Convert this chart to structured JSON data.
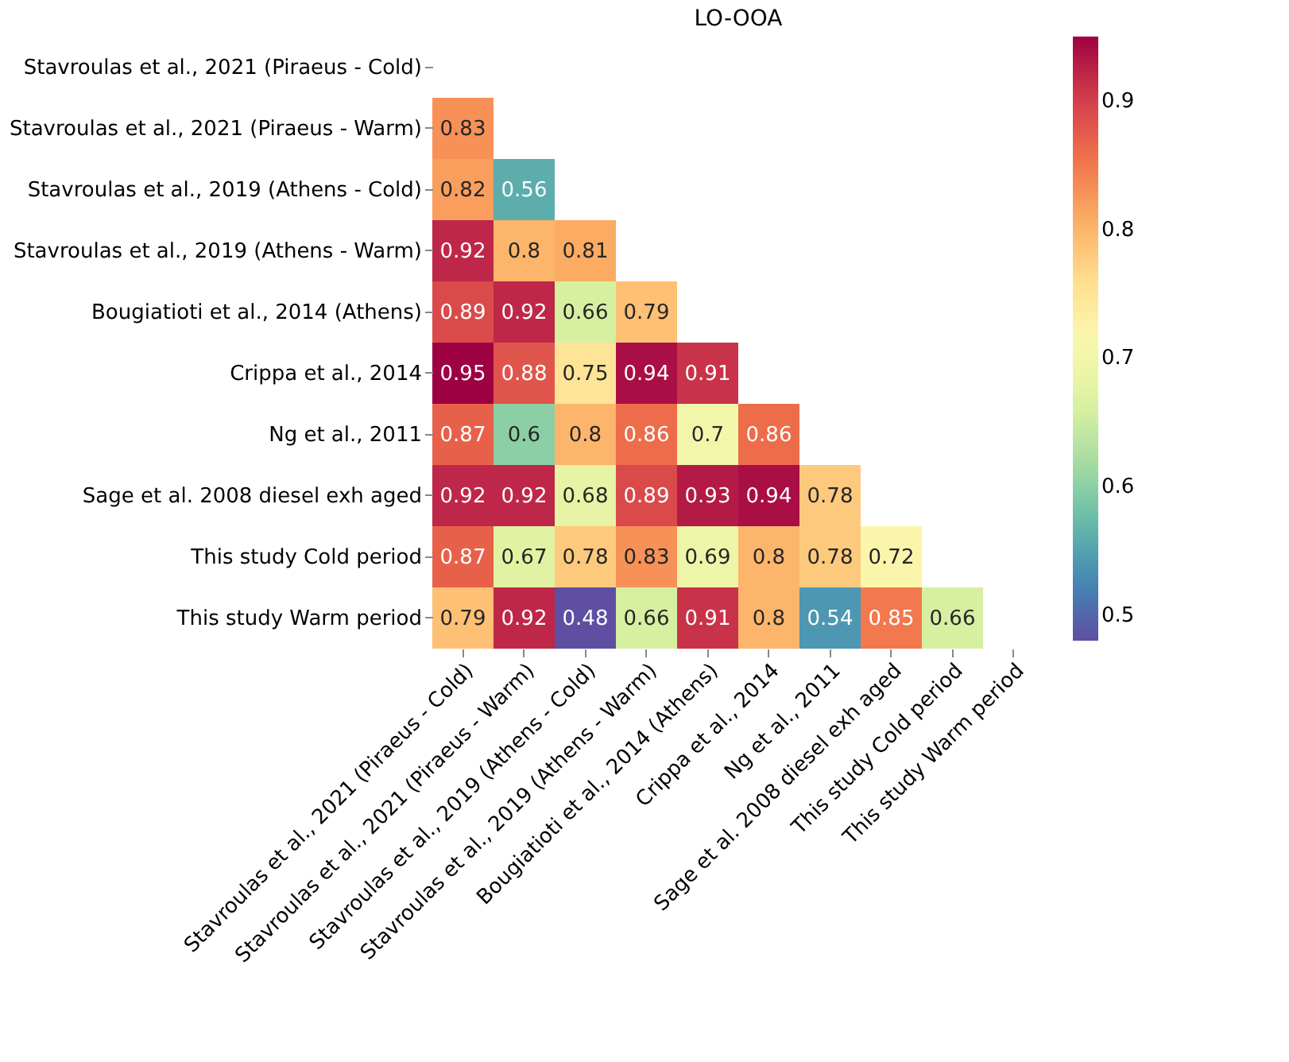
{
  "chart_data": {
    "type": "heatmap",
    "title": "LO-OOA",
    "categories": [
      "Stavroulas et al., 2021 (Piraeus - Cold)",
      "Stavroulas et al., 2021 (Piraeus - Warm)",
      "Stavroulas et al., 2019 (Athens - Cold)",
      "Stavroulas et al., 2019 (Athens - Warm)",
      "Bougiatioti et al., 2014 (Athens)",
      "Crippa et al., 2014",
      "Ng et al., 2011",
      "Sage et al. 2008 diesel exh  aged",
      "This study Cold period",
      "This study Warm period"
    ],
    "y_categories": [
      "Stavroulas et al., 2021 (Piraeus - Cold)",
      "Stavroulas et al., 2021 (Piraeus - Warm)",
      "Stavroulas et al., 2019 (Athens - Cold)",
      "Stavroulas et al., 2019 (Athens - Warm)",
      "Bougiatioti et al., 2014 (Athens)",
      "Crippa et al., 2014",
      "Ng et al., 2011",
      "Sage et al. 2008 diesel exh  aged",
      "This study Cold period",
      "This study Warm period"
    ],
    "cells": [
      [
        null,
        null,
        null,
        null,
        null,
        null,
        null,
        null,
        null,
        null
      ],
      [
        0.83,
        null,
        null,
        null,
        null,
        null,
        null,
        null,
        null,
        null
      ],
      [
        0.82,
        0.56,
        null,
        null,
        null,
        null,
        null,
        null,
        null,
        null
      ],
      [
        0.92,
        0.8,
        0.81,
        null,
        null,
        null,
        null,
        null,
        null,
        null
      ],
      [
        0.89,
        0.92,
        0.66,
        0.79,
        null,
        null,
        null,
        null,
        null,
        null
      ],
      [
        0.95,
        0.88,
        0.75,
        0.94,
        0.91,
        null,
        null,
        null,
        null,
        null
      ],
      [
        0.87,
        0.6,
        0.8,
        0.86,
        0.7,
        0.86,
        null,
        null,
        null,
        null
      ],
      [
        0.92,
        0.92,
        0.68,
        0.89,
        0.93,
        0.94,
        0.78,
        null,
        null,
        null
      ],
      [
        0.87,
        0.67,
        0.78,
        0.83,
        0.69,
        0.8,
        0.78,
        0.72,
        null,
        null
      ],
      [
        0.79,
        0.92,
        0.48,
        0.66,
        0.91,
        0.8,
        0.54,
        0.85,
        0.66,
        null
      ]
    ],
    "clim": [
      0.48,
      0.95
    ],
    "cticks": [
      0.5,
      0.6,
      0.7,
      0.8,
      0.9
    ],
    "data_labels": true
  }
}
